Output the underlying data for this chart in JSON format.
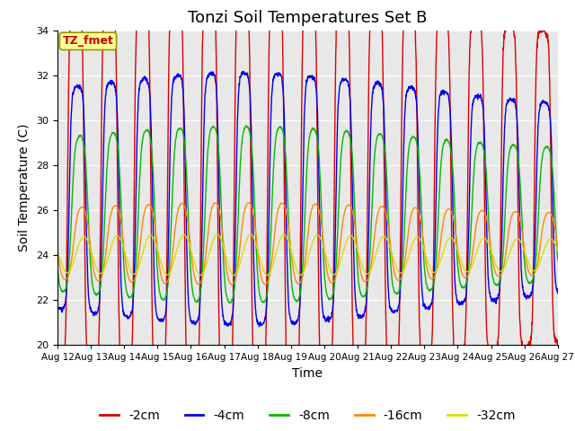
{
  "title": "Tonzi Soil Temperatures Set B",
  "xlabel": "Time",
  "ylabel": "Soil Temperature (C)",
  "ylim": [
    20,
    34
  ],
  "x_tick_labels": [
    "Aug 12",
    "Aug 13",
    "Aug 14",
    "Aug 15",
    "Aug 16",
    "Aug 17",
    "Aug 18",
    "Aug 19",
    "Aug 20",
    "Aug 21",
    "Aug 22",
    "Aug 23",
    "Aug 24",
    "Aug 25",
    "Aug 26",
    "Aug 27"
  ],
  "annotation_text": "TZ_fmet",
  "annotation_color": "#cc0000",
  "annotation_bg": "#ffff99",
  "annotation_border": "#999900",
  "series_colors": [
    "#dd0000",
    "#0000ee",
    "#00bb00",
    "#ff8800",
    "#dddd00"
  ],
  "series_labels": [
    "-2cm",
    "-4cm",
    "-8cm",
    "-16cm",
    "-32cm"
  ],
  "bg_color": "#e8e8e8",
  "title_fontsize": 13,
  "axis_fontsize": 10,
  "legend_fontsize": 10,
  "num_days": 15
}
